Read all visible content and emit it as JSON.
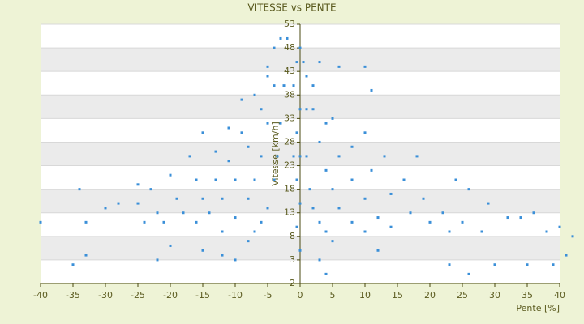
{
  "chart_data": {
    "type": "scatter",
    "title": "VITESSE vs PENTE",
    "x_label": "Pente [%]",
    "y_label": "Vitesse [km/h]",
    "color": "#3a8fd8",
    "x": [
      -2,
      -2.5,
      -3,
      -3.5,
      -4,
      -5,
      -6,
      -7,
      -3,
      -4,
      -5,
      -6,
      -7,
      -8,
      -10,
      -12,
      -4,
      -5,
      -6,
      -8,
      -10,
      -12,
      -14,
      -16,
      -5,
      -7,
      -9,
      -11,
      -13,
      -15,
      -18,
      -21,
      -9,
      -11,
      -13,
      -16,
      -19,
      -22,
      -24,
      -15,
      -17,
      -20,
      -23,
      -25,
      -40,
      -35,
      -34,
      -33,
      -33,
      -30,
      -28,
      -25,
      -22,
      -20,
      -15,
      -12,
      -10,
      -8,
      -0.5,
      -0.5,
      -0.5,
      -0.5,
      0,
      0,
      0,
      0,
      0,
      -1,
      -1,
      0.5,
      1,
      1,
      1.5,
      2,
      3,
      4,
      5,
      1,
      2,
      3,
      4,
      5,
      6,
      8,
      10,
      2,
      4,
      6,
      8,
      10,
      12,
      14,
      5,
      8,
      11,
      14,
      17,
      20,
      23,
      10,
      13,
      16,
      19,
      22,
      25,
      28,
      3,
      6,
      10,
      11,
      18,
      24,
      26,
      29,
      32,
      34,
      36,
      38,
      40,
      42,
      41,
      39,
      35,
      30,
      26,
      23,
      12,
      4,
      3
    ],
    "values": [
      50,
      40,
      32,
      25,
      20,
      14,
      11,
      9,
      50,
      40,
      32,
      25,
      20,
      16,
      12,
      9,
      48,
      42,
      35,
      27,
      20,
      16,
      13,
      11,
      44,
      38,
      30,
      24,
      20,
      16,
      13,
      11,
      37,
      31,
      26,
      20,
      16,
      13,
      11,
      30,
      25,
      21,
      18,
      15,
      11,
      2,
      18,
      11,
      4,
      14,
      15,
      19,
      3,
      6,
      5,
      4,
      3,
      7,
      45,
      30,
      20,
      10,
      5,
      15,
      25,
      35,
      48,
      40,
      25,
      45,
      35,
      25,
      18,
      14,
      11,
      9,
      7,
      42,
      35,
      28,
      22,
      18,
      14,
      11,
      9,
      40,
      32,
      25,
      20,
      16,
      12,
      10,
      33,
      27,
      22,
      17,
      13,
      11,
      9,
      30,
      25,
      20,
      16,
      13,
      11,
      9,
      45,
      44,
      44,
      39,
      25,
      20,
      18,
      15,
      12,
      12,
      13,
      9,
      10,
      8,
      4,
      2,
      2,
      2,
      0,
      2,
      5,
      0,
      3
    ],
    "xlim": [
      -40,
      40
    ],
    "xticks": [
      -40,
      -35,
      -30,
      -25,
      -20,
      -15,
      -10,
      -5,
      0,
      5,
      10,
      15,
      20,
      25,
      30,
      35,
      40
    ],
    "ylim": [
      -2,
      53
    ],
    "yticks": [
      -2,
      3,
      8,
      13,
      18,
      23,
      28,
      33,
      38,
      43,
      48,
      53
    ],
    "grid": true
  }
}
